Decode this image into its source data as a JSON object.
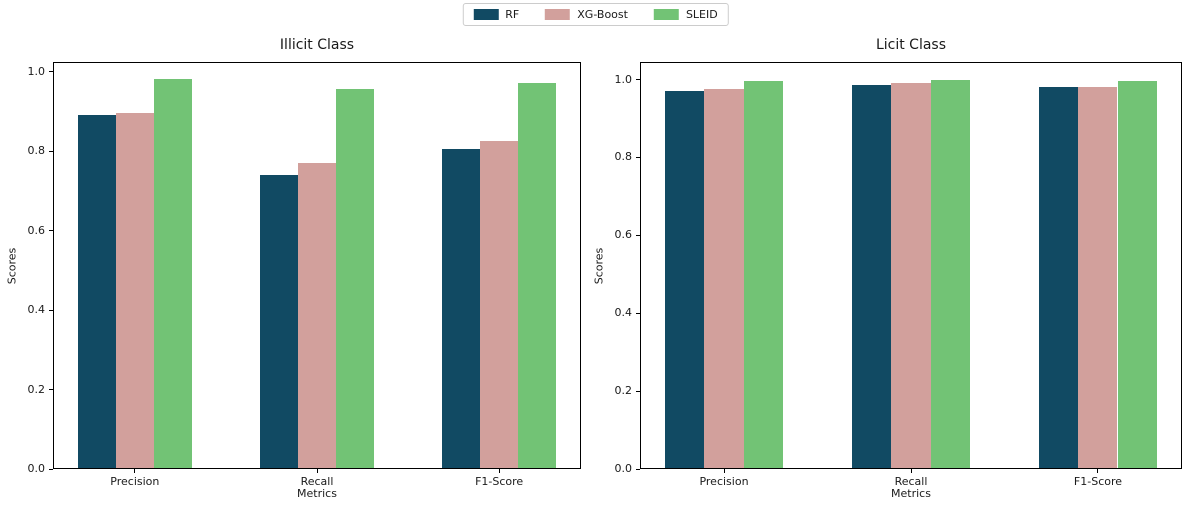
{
  "legend": {
    "entries": [
      {
        "label": "RF",
        "color": "#114a63"
      },
      {
        "label": "XG-Boost",
        "color": "#d2a09c"
      },
      {
        "label": "SLEID",
        "color": "#72c375"
      }
    ]
  },
  "chart_data": [
    {
      "type": "bar",
      "title": "Illicit Class",
      "xlabel": "Metrics",
      "ylabel": "Scores",
      "categories": [
        "Precision",
        "Recall",
        "F1-Score"
      ],
      "series": [
        {
          "name": "RF",
          "color": "#114a63",
          "values": [
            0.89,
            0.74,
            0.805
          ]
        },
        {
          "name": "XG-Boost",
          "color": "#d2a09c",
          "values": [
            0.895,
            0.77,
            0.825
          ]
        },
        {
          "name": "SLEID",
          "color": "#72c375",
          "values": [
            0.98,
            0.955,
            0.97
          ]
        }
      ],
      "yticks": [
        0.0,
        0.2,
        0.4,
        0.6,
        0.8,
        1.0
      ],
      "ylim": [
        0,
        1.024
      ],
      "grid": false,
      "legend_position": "shared-top-center"
    },
    {
      "type": "bar",
      "title": "Licit Class",
      "xlabel": "Metrics",
      "ylabel": "Scores",
      "categories": [
        "Precision",
        "Recall",
        "F1-Score"
      ],
      "series": [
        {
          "name": "RF",
          "color": "#114a63",
          "values": [
            0.97,
            0.985,
            0.98
          ]
        },
        {
          "name": "XG-Boost",
          "color": "#d2a09c",
          "values": [
            0.975,
            0.99,
            0.982
          ]
        },
        {
          "name": "SLEID",
          "color": "#72c375",
          "values": [
            0.995,
            0.998,
            0.996
          ]
        }
      ],
      "yticks": [
        0.0,
        0.2,
        0.4,
        0.6,
        0.8,
        1.0
      ],
      "ylim": [
        0,
        1.045
      ],
      "grid": false,
      "legend_position": "shared-top-center"
    }
  ]
}
